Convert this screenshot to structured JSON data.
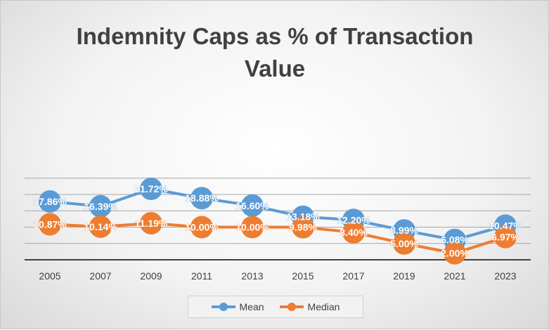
{
  "chart_data": {
    "type": "line",
    "title": "Indemnity Caps as % of Transaction Value",
    "categories": [
      "2005",
      "2007",
      "2009",
      "2011",
      "2013",
      "2015",
      "2017",
      "2019",
      "2021",
      "2023"
    ],
    "series": [
      {
        "name": "Mean",
        "color": "#5B9BD5",
        "values": [
          17.86,
          16.39,
          21.72,
          18.88,
          16.6,
          13.18,
          12.2,
          8.99,
          6.08,
          10.47
        ],
        "labels": [
          "17.86%",
          "16.39%",
          "21.72%",
          "18.88%",
          "16.60%",
          "13.18%",
          "12.20%",
          "8.99%",
          "6.08%",
          "10.47%"
        ]
      },
      {
        "name": "Median",
        "color": "#ED7D31",
        "values": [
          10.87,
          10.14,
          11.19,
          10.0,
          10.0,
          9.98,
          8.4,
          5.0,
          2.0,
          6.97
        ],
        "labels": [
          "10.87%",
          "10.14%",
          "11.19%",
          "10.00%",
          "10.00%",
          "9.98%",
          "8.40%",
          "5.00%",
          "2.00%",
          "6.97%"
        ]
      }
    ],
    "ylim": [
      0,
      25
    ],
    "y_axis_visible": false,
    "grid": true,
    "legend": "bottom"
  }
}
